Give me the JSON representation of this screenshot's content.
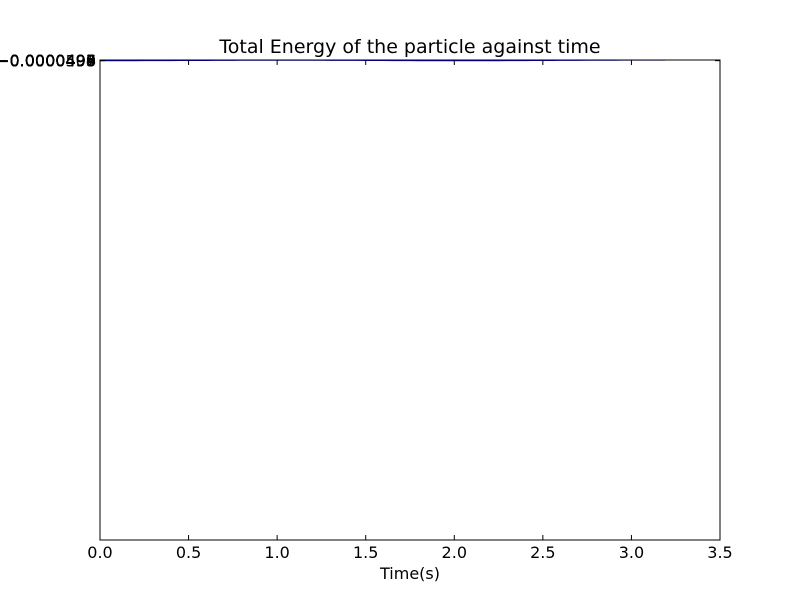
{
  "chart_data": {
    "type": "line",
    "title": "Total Energy of the particle against time",
    "xlabel": "Time(s)",
    "ylabel": "",
    "xlim": [
      0.0,
      3.5
    ],
    "ylim": [
      -0.0005,
      -4.94e-05
    ],
    "x_ticks": [
      {
        "value": 0.0,
        "label": "0.0"
      },
      {
        "value": 0.5,
        "label": "0.5"
      },
      {
        "value": 1.0,
        "label": "1.0"
      },
      {
        "value": 1.5,
        "label": "1.5"
      },
      {
        "value": 2.0,
        "label": "2.0"
      },
      {
        "value": 2.5,
        "label": "2.5"
      },
      {
        "value": 3.0,
        "label": "3.0"
      },
      {
        "value": 3.5,
        "label": "3.5"
      }
    ],
    "y_ticks": [
      {
        "value": -4.94e-05,
        "label": "−0.0000494"
      },
      {
        "value": -4.95e-05,
        "label": "−0.0000495"
      },
      {
        "value": -4.96e-05,
        "label": "−0.0000496"
      },
      {
        "value": -4.97e-05,
        "label": "−0.0000497"
      },
      {
        "value": -4.98e-05,
        "label": "−0.0000498"
      },
      {
        "value": -4.99e-05,
        "label": "−0.0000499"
      },
      {
        "value": -5e-05,
        "label": "−0.0000500"
      }
    ],
    "grid": false,
    "line_color": "#0000ff",
    "series": [
      {
        "x": [
          0.0,
          0.05,
          0.1,
          0.15,
          0.2,
          0.25,
          0.3,
          0.35,
          0.4,
          0.45,
          0.5,
          0.55,
          0.6,
          0.65,
          0.7,
          0.75,
          0.8,
          0.85,
          0.9,
          0.95,
          1.0,
          1.05,
          1.1,
          1.13,
          1.15,
          1.2,
          1.25,
          1.3,
          1.35,
          1.4,
          1.45,
          1.5,
          1.55,
          1.6,
          1.65,
          1.7,
          1.75,
          1.8,
          1.85,
          1.9,
          1.95,
          2.0,
          2.02,
          2.05,
          2.1,
          2.15,
          2.2,
          2.25,
          2.3,
          2.35,
          2.4,
          2.45,
          2.5,
          2.55,
          2.6,
          2.65,
          2.7,
          2.75,
          2.8,
          2.85,
          2.9,
          2.95,
          3.0,
          3.05,
          3.1,
          3.14,
          3.17,
          3.19
        ],
        "y": [
          -5e-05,
          -4.99975e-05,
          -4.99901e-05,
          -4.99778e-05,
          -4.9961e-05,
          -4.99398e-05,
          -4.99147e-05,
          -4.98861e-05,
          -4.98547e-05,
          -4.98211e-05,
          -4.97861e-05,
          -4.97505e-05,
          -4.97151e-05,
          -4.96807e-05,
          -4.96481e-05,
          -4.96181e-05,
          -4.95914e-05,
          -4.95685e-05,
          -4.955e-05,
          -4.95364e-05,
          -4.9528e-05,
          -4.9525e-05,
          -4.95275e-05,
          -4.95354e-05,
          -4.95485e-05,
          -4.95665e-05,
          -4.95892e-05,
          -4.96158e-05,
          -4.96459e-05,
          -4.96789e-05,
          -4.97139e-05,
          -4.97504e-05,
          -4.97874e-05,
          -4.98241e-05,
          -4.98598e-05,
          -4.98936e-05,
          -4.99249e-05,
          -4.99528e-05,
          -4.99769e-05,
          -4.99965e-05,
          -5.00112e-05,
          -5.00206e-05,
          -5.00246e-05,
          -5.0023e-05,
          -5.00159e-05,
          -5.00033e-05,
          -4.99855e-05,
          -4.99629e-05,
          -4.99358e-05,
          -4.99047e-05,
          -4.98702e-05,
          -4.98329e-05,
          -4.97936e-05,
          -4.9753e-05,
          -4.97118e-05,
          -4.96709e-05,
          -4.96311e-05,
          -4.95931e-05,
          -4.95576e-05,
          -4.95254e-05,
          -4.9497e-05,
          -4.9473e-05,
          -4.94537e-05,
          -4.94396e-05,
          -4.94307e-05,
          -4.94272e-05,
          -4.9428e-05,
          -4.94321e-05
        ]
      }
    ]
  }
}
